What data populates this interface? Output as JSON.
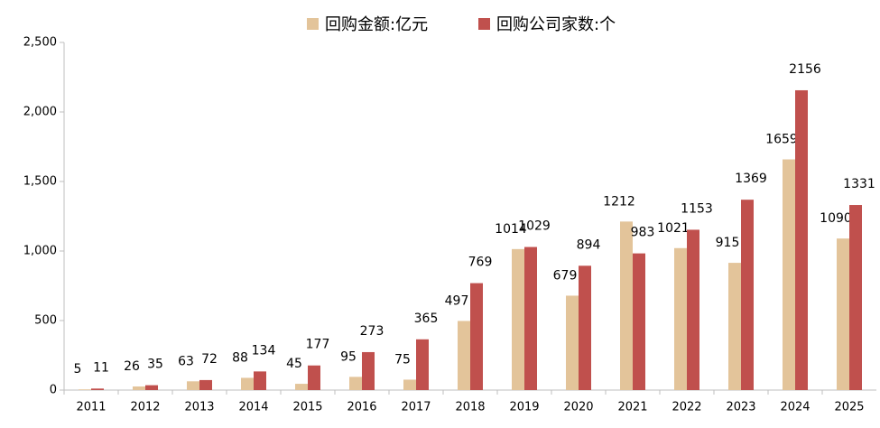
{
  "chart_data": {
    "type": "bar",
    "categories": [
      "2011",
      "2012",
      "2013",
      "2014",
      "2015",
      "2016",
      "2017",
      "2018",
      "2019",
      "2020",
      "2021",
      "2022",
      "2023",
      "2024",
      "2025"
    ],
    "series": [
      {
        "name": "回购金额:亿元",
        "color": "#e3c49a",
        "values": [
          5,
          26,
          63,
          88,
          45,
          95,
          75,
          497,
          1014,
          679,
          1212,
          1021,
          915,
          1659,
          1090
        ]
      },
      {
        "name": "回购公司家数:个",
        "color": "#c0504d",
        "values": [
          11,
          35,
          72,
          134,
          177,
          273,
          365,
          769,
          1029,
          894,
          983,
          1153,
          1369,
          2156,
          1331
        ]
      }
    ],
    "ylim": [
      0,
      2500
    ],
    "yticks": [
      0,
      500,
      {
        "value": 1000,
        "label": "1,000"
      },
      {
        "value": 1500,
        "label": "1,500"
      },
      {
        "value": 2000,
        "label": "2,000"
      },
      {
        "value": 2500,
        "label": "2,500"
      }
    ],
    "legend": "top"
  }
}
